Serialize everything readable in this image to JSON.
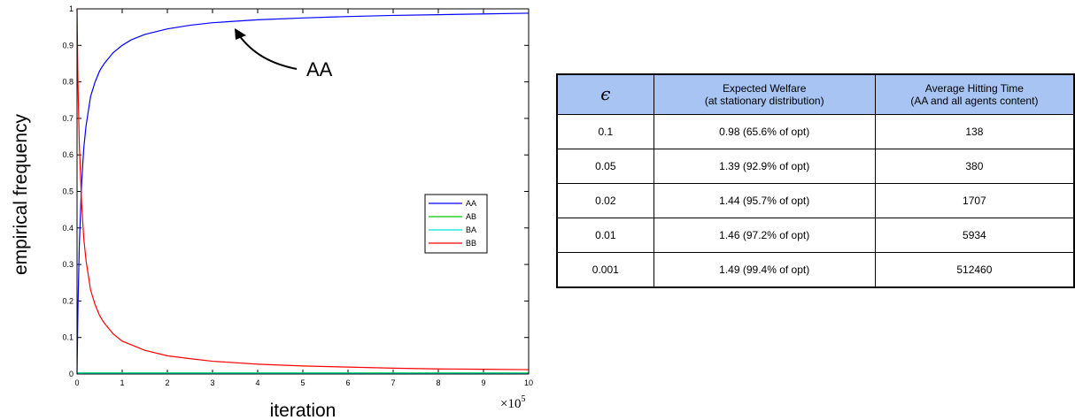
{
  "chart_data": {
    "type": "line",
    "xlabel": "iteration",
    "ylabel": "empirical frequency",
    "x_exponent_label": {
      "base": "×10",
      "exp": "5"
    },
    "xlim": [
      0,
      10
    ],
    "ylim": [
      0,
      1
    ],
    "xticks": [
      0,
      1,
      2,
      3,
      4,
      5,
      6,
      7,
      8,
      9,
      10
    ],
    "yticks": [
      0,
      0.1,
      0.2,
      0.3,
      0.4,
      0.5,
      0.6,
      0.7,
      0.8,
      0.9,
      1
    ],
    "ytick_labels": [
      "0",
      "0.1",
      "0.2",
      "0.3",
      "0.4",
      "0.5",
      "0.6",
      "0.7",
      "0.8",
      "0.9",
      "1"
    ],
    "grid": false,
    "legend_position": "right",
    "annotation": {
      "text": "AA",
      "x_target": 3.5,
      "y_target": 0.97
    },
    "series": [
      {
        "name": "AA",
        "color": "#0000ff",
        "x": [
          0,
          0.02,
          0.05,
          0.1,
          0.15,
          0.2,
          0.3,
          0.4,
          0.5,
          0.6,
          0.8,
          1.0,
          1.2,
          1.5,
          2.0,
          2.5,
          3.0,
          4.0,
          5.0,
          6.0,
          7.0,
          8.0,
          9.0,
          10.0
        ],
        "y": [
          0,
          0.18,
          0.35,
          0.52,
          0.62,
          0.68,
          0.76,
          0.8,
          0.83,
          0.85,
          0.88,
          0.9,
          0.915,
          0.93,
          0.945,
          0.955,
          0.962,
          0.97,
          0.975,
          0.979,
          0.982,
          0.984,
          0.986,
          0.988
        ]
      },
      {
        "name": "AB",
        "color": "#00cc00",
        "x": [
          0,
          10
        ],
        "y": [
          0.003,
          0.003
        ]
      },
      {
        "name": "BA",
        "color": "#00e5e5",
        "x": [
          0,
          10
        ],
        "y": [
          0.002,
          0.002
        ]
      },
      {
        "name": "BB",
        "color": "#ff0000",
        "x": [
          0,
          0.02,
          0.05,
          0.1,
          0.15,
          0.2,
          0.3,
          0.4,
          0.5,
          0.6,
          0.8,
          1.0,
          1.2,
          1.5,
          2.0,
          2.5,
          3.0,
          4.0,
          5.0,
          6.0,
          7.0,
          8.0,
          9.0,
          10.0
        ],
        "y": [
          1,
          0.8,
          0.63,
          0.47,
          0.37,
          0.31,
          0.23,
          0.19,
          0.16,
          0.14,
          0.11,
          0.09,
          0.08,
          0.065,
          0.05,
          0.042,
          0.035,
          0.027,
          0.022,
          0.019,
          0.016,
          0.014,
          0.013,
          0.012
        ]
      }
    ]
  },
  "table": {
    "headers": [
      {
        "main": "ϵ"
      },
      {
        "line1": "Expected Welfare",
        "line2": "(at stationary distribution)"
      },
      {
        "line1": "Average Hitting Time",
        "line2": "(AA and all agents content)"
      }
    ],
    "rows": [
      {
        "eps": "0.1",
        "welfare": "0.98 (65.6% of opt)",
        "time": "138"
      },
      {
        "eps": "0.05",
        "welfare": "1.39 (92.9% of opt)",
        "time": "380"
      },
      {
        "eps": "0.02",
        "welfare": "1.44 (95.7% of opt)",
        "time": "1707"
      },
      {
        "eps": "0.01",
        "welfare": "1.46 (97.2% of opt)",
        "time": "5934"
      },
      {
        "eps": "0.001",
        "welfare": "1.49 (99.4% of opt)",
        "time": "512460"
      }
    ],
    "header_color": "#a7c4f3"
  }
}
